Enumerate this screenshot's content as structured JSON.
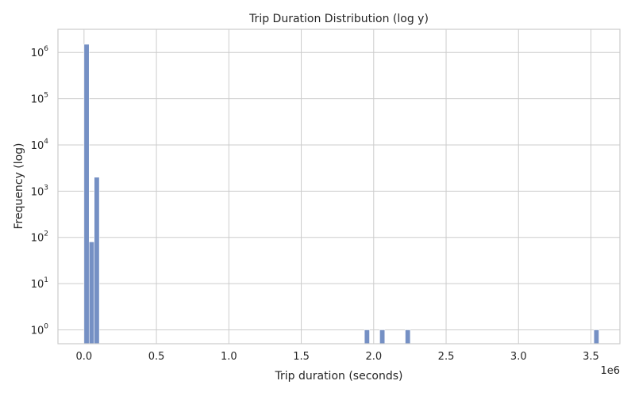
{
  "chart_data": {
    "type": "bar",
    "title": "Trip Duration Distribution (log y)",
    "xlabel": "Trip duration (seconds)",
    "ylabel": "Frequency (log)",
    "x_offset_label": "1e6",
    "y_scale": "log",
    "x_range": [
      -0.18,
      3.7
    ],
    "y_range_log10": [
      -0.3,
      6.5
    ],
    "x_ticks": [
      {
        "value": 0.0,
        "label": "0.0"
      },
      {
        "value": 0.5,
        "label": "0.5"
      },
      {
        "value": 1.0,
        "label": "1.0"
      },
      {
        "value": 1.5,
        "label": "1.5"
      },
      {
        "value": 2.0,
        "label": "2.0"
      },
      {
        "value": 2.5,
        "label": "2.5"
      },
      {
        "value": 3.0,
        "label": "3.0"
      },
      {
        "value": 3.5,
        "label": "3.5"
      }
    ],
    "y_ticks": [
      {
        "exp": 0,
        "base": "10",
        "sup": "0"
      },
      {
        "exp": 1,
        "base": "10",
        "sup": "1"
      },
      {
        "exp": 2,
        "base": "10",
        "sup": "2"
      },
      {
        "exp": 3,
        "base": "10",
        "sup": "3"
      },
      {
        "exp": 4,
        "base": "10",
        "sup": "4"
      },
      {
        "exp": 5,
        "base": "10",
        "sup": "5"
      },
      {
        "exp": 6,
        "base": "10",
        "sup": "6"
      }
    ],
    "bin_width": 0.0352,
    "bins": [
      {
        "start": 0.0,
        "count": 1500000
      },
      {
        "start": 0.0352,
        "count": 80
      },
      {
        "start": 0.0704,
        "count": 2000
      },
      {
        "start": 1.936,
        "count": 1
      },
      {
        "start": 2.0416,
        "count": 1
      },
      {
        "start": 2.2176,
        "count": 1
      },
      {
        "start": 3.52,
        "count": 1
      }
    ],
    "bar_color": "#7590c4",
    "grid": true,
    "legend": "none"
  }
}
